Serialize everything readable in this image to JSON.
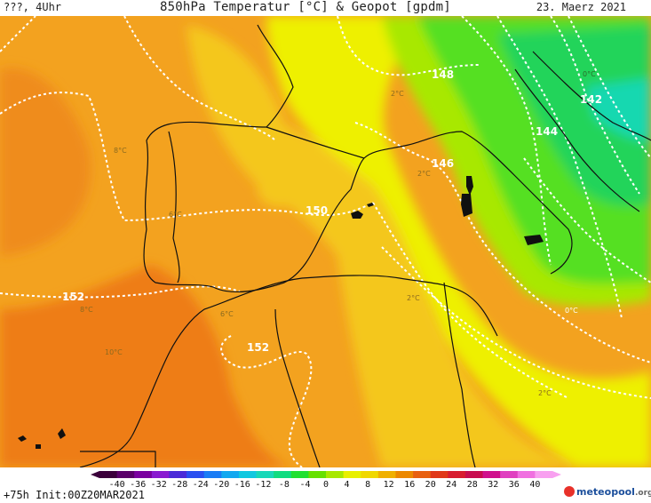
{
  "header": {
    "left_label": "???, 4Uhr",
    "title": "850hPa Temperatur [°C] & Geopot [gpdm]",
    "date": "23. Maerz 2021"
  },
  "footer": {
    "init_label": "+75h Init:00Z20MAR2021",
    "logo_main": "meteopool",
    "logo_suffix": ".org"
  },
  "colorbar": {
    "ticks": [
      "-40",
      "-36",
      "-32",
      "-28",
      "-24",
      "-20",
      "-16",
      "-12",
      "-8",
      "-4",
      "0",
      "4",
      "8",
      "12",
      "16",
      "20",
      "24",
      "28",
      "32",
      "36",
      "40"
    ],
    "colors": [
      "#3b003b",
      "#5a006a",
      "#7a00a0",
      "#8a1ad0",
      "#4b2bd8",
      "#2a4ff0",
      "#1a7cf5",
      "#12a8f0",
      "#10c8e0",
      "#18d8b8",
      "#10dc80",
      "#20e030",
      "#66e000",
      "#a8e800",
      "#e8f000",
      "#f0d800",
      "#f0b000",
      "#ec8800",
      "#e86010",
      "#e03818",
      "#d81c30",
      "#c80c50",
      "#d0108c",
      "#e040c0",
      "#f070e0",
      "#f8a0f0"
    ]
  },
  "map_labels": {
    "geopot_148": "148",
    "geopot_142": "142",
    "geopot_144": "144",
    "geopot_146": "146",
    "geopot_150": "150",
    "geopot_152_west": "152",
    "geopot_152_south": "152",
    "temp_2c_north": "2°C",
    "temp_8c": "8°C",
    "temp_6c_portugal": "6°C",
    "temp_2c_med": "2°C",
    "temp_8c_morocco": "8°C",
    "temp_6c_atlas": "6°C",
    "temp_2c_tunisia": "2°C",
    "temp_10c": "10°C",
    "temp_0c": "0°C",
    "temp_2c_libya": "2°C",
    "temp_0c_alps": "0°C"
  },
  "colors": {
    "warm": "#f3a21f",
    "hot": "#ee7d18",
    "mid": "#f4c71e",
    "yellow": "#eef000",
    "lime": "#a8e800",
    "green": "#55e022",
    "deepgreen": "#22d45a",
    "teal": "#18d8b0",
    "coast": "#101010",
    "contour": "#ffffff"
  }
}
